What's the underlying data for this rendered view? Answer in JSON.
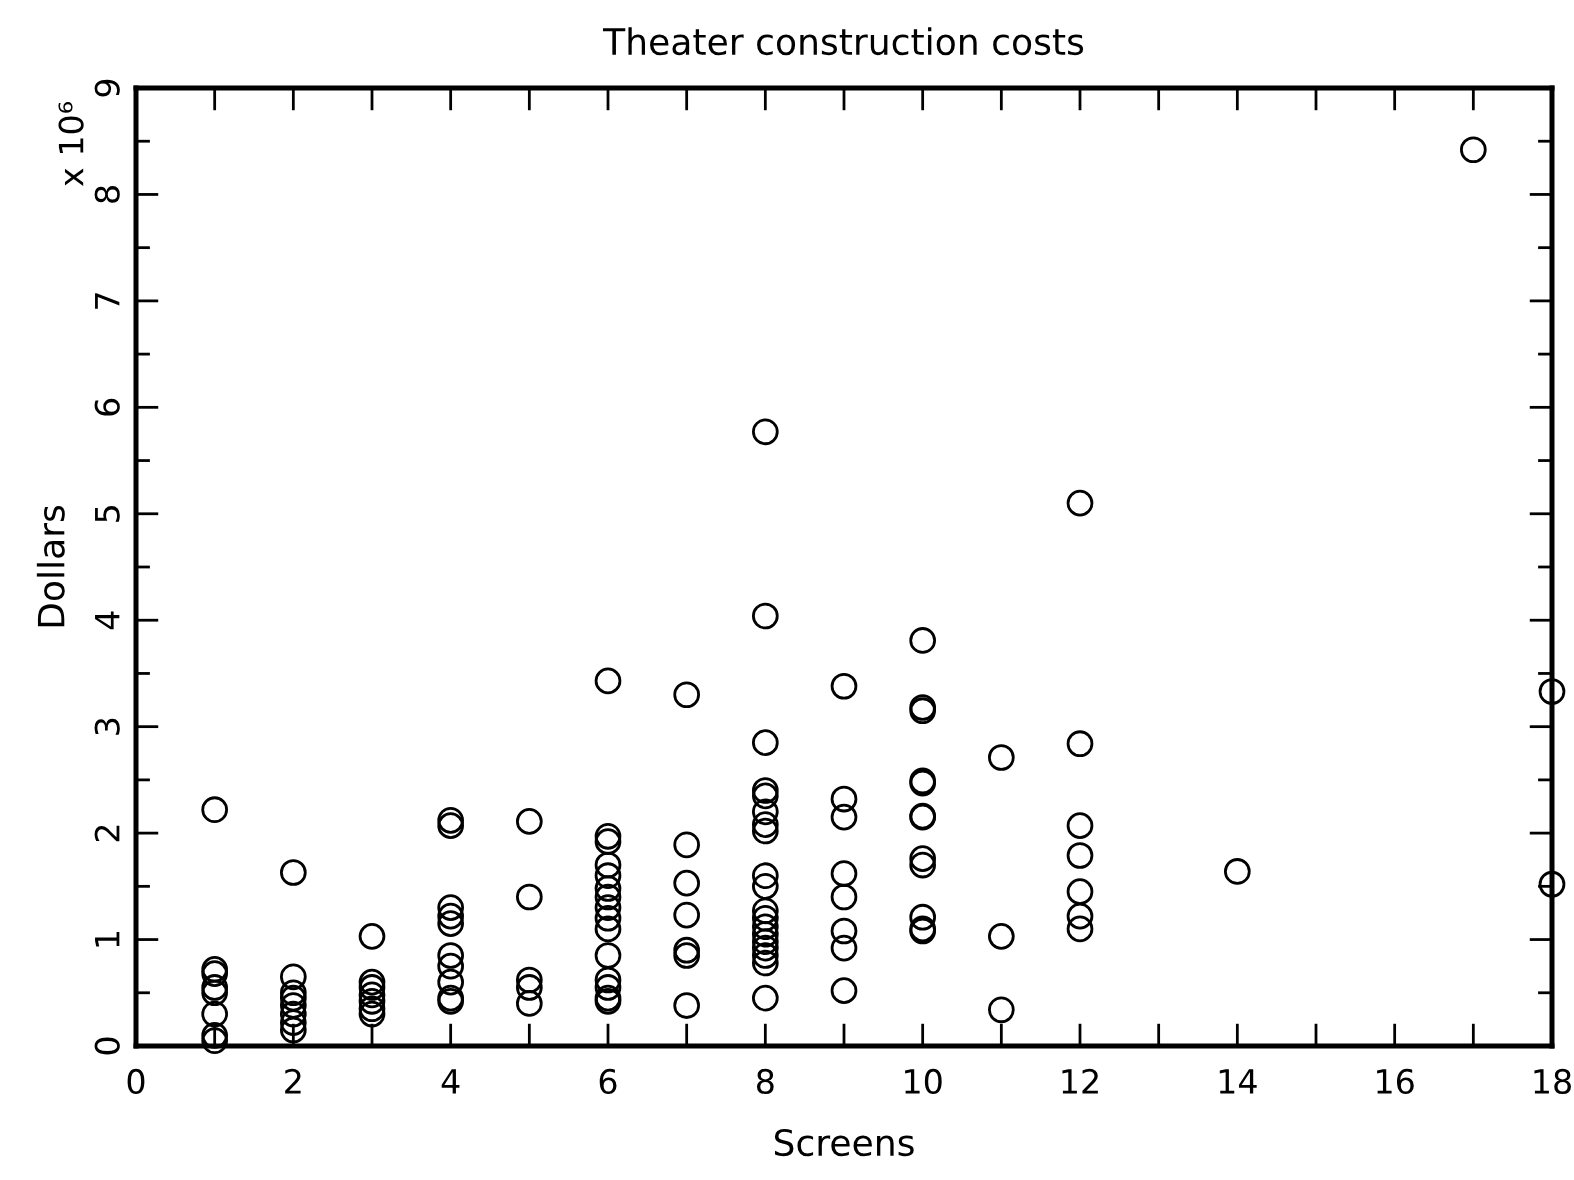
{
  "chart_data": {
    "type": "scatter",
    "title": "Theater construction costs",
    "xlabel": "Screens",
    "ylabel": "Dollars",
    "annotations": [
      "x 10⁶"
    ],
    "x": [
      1,
      1,
      1,
      1,
      1,
      1,
      1,
      1,
      2,
      2,
      2,
      2,
      2,
      2,
      2,
      2,
      3,
      3,
      3,
      3,
      3,
      3,
      3,
      4,
      4,
      4,
      4,
      4,
      4,
      4,
      4,
      4,
      4,
      5,
      5,
      5,
      5,
      5,
      6,
      6,
      6,
      6,
      6,
      6,
      6,
      6,
      6,
      6,
      6,
      6,
      6,
      6,
      6,
      7,
      7,
      7,
      7,
      7,
      7,
      7,
      8,
      8,
      8,
      8,
      8,
      8,
      8,
      8,
      8,
      8,
      8,
      8,
      8,
      8,
      8,
      8,
      8,
      8,
      8,
      9,
      9,
      9,
      9,
      9,
      9,
      9,
      9,
      10,
      10,
      10,
      10,
      10,
      10,
      10,
      10,
      10,
      10,
      10,
      10,
      11,
      11,
      11,
      12,
      12,
      12,
      12,
      12,
      12,
      12,
      14,
      17,
      18,
      18
    ],
    "values": [
      2.22,
      0.72,
      0.68,
      0.55,
      0.5,
      0.3,
      0.1,
      0.05,
      1.63,
      0.65,
      0.5,
      0.45,
      0.38,
      0.3,
      0.22,
      0.15,
      1.03,
      0.6,
      0.55,
      0.48,
      0.42,
      0.35,
      0.3,
      2.12,
      2.07,
      1.3,
      1.22,
      1.15,
      0.85,
      0.75,
      0.6,
      0.45,
      0.42,
      2.11,
      1.4,
      0.62,
      0.55,
      0.4,
      3.43,
      1.97,
      1.92,
      1.7,
      1.6,
      1.48,
      1.4,
      1.3,
      1.2,
      1.1,
      0.85,
      0.62,
      0.55,
      0.45,
      0.42,
      3.3,
      1.89,
      1.53,
      1.23,
      0.9,
      0.85,
      0.38,
      5.77,
      4.04,
      2.85,
      2.4,
      2.35,
      2.2,
      2.08,
      2.02,
      1.6,
      1.5,
      1.27,
      1.2,
      1.12,
      1.05,
      0.98,
      0.92,
      0.85,
      0.78,
      0.45,
      3.38,
      2.32,
      2.15,
      1.62,
      1.4,
      1.08,
      0.92,
      0.52,
      3.81,
      3.18,
      3.15,
      2.49,
      2.47,
      2.16,
      2.15,
      1.76,
      1.7,
      1.21,
      1.1,
      1.08,
      2.71,
      1.03,
      0.34,
      5.1,
      2.84,
      2.07,
      1.79,
      1.45,
      1.22,
      1.1,
      1.64,
      8.42,
      3.33,
      1.52
    ],
    "color": "#000000",
    "marker": "circle",
    "grid": false,
    "xlim": [
      0,
      18
    ],
    "ylim": [
      0,
      9
    ],
    "xticks": [
      0,
      {
        "value": 1,
        "label": null
      },
      2,
      {
        "value": 3,
        "label": null
      },
      4,
      {
        "value": 5,
        "label": null
      },
      6,
      {
        "value": 7,
        "label": null
      },
      8,
      {
        "value": 9,
        "label": null
      },
      10,
      {
        "value": 11,
        "label": null
      },
      12,
      {
        "value": 13,
        "label": null
      },
      14,
      {
        "value": 15,
        "label": null
      },
      16,
      {
        "value": 17,
        "label": null
      },
      18
    ],
    "yticks": [
      0,
      {
        "value": 0.5,
        "label": null
      },
      1,
      {
        "value": 1.5,
        "label": null
      },
      2,
      {
        "value": 2.5,
        "label": null
      },
      3,
      {
        "value": 3.5,
        "label": null
      },
      4,
      {
        "value": 4.5,
        "label": null
      },
      5,
      {
        "value": 5.5,
        "label": null
      },
      6,
      {
        "value": 6.5,
        "label": null
      },
      7,
      {
        "value": 7.5,
        "label": null
      },
      8,
      {
        "value": 8.5,
        "label": null
      },
      9
    ]
  }
}
